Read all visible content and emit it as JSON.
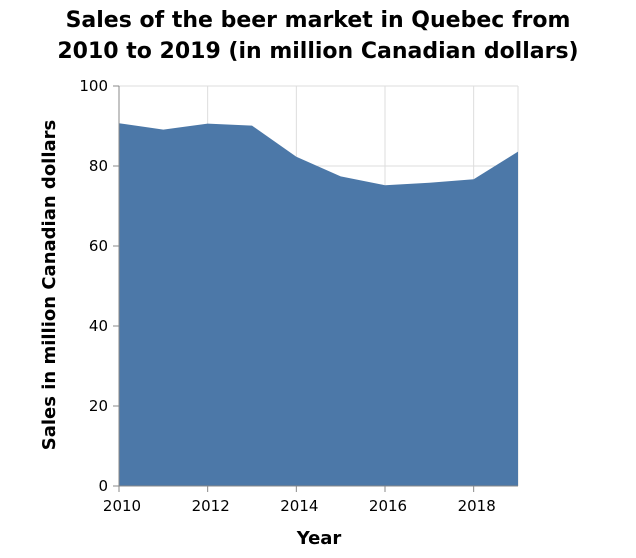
{
  "chart_data": {
    "type": "area",
    "title": [
      "Sales of the beer market in Quebec from",
      "2010 to 2019 (in million Canadian dollars)"
    ],
    "xlabel": "Year",
    "ylabel": "Sales in million Canadian dollars",
    "x": [
      2010,
      2011,
      2012,
      2013,
      2014,
      2015,
      2016,
      2017,
      2018,
      2019
    ],
    "series": [
      {
        "values": [
          90.7,
          89.1,
          90.6,
          90.1,
          82.3,
          77.4,
          75.2,
          75.8,
          76.7,
          83.6
        ]
      }
    ],
    "xlim": [
      2010,
      2019
    ],
    "ylim": [
      0,
      100
    ],
    "xticks": [
      2010,
      2012,
      2014,
      2016,
      2018
    ],
    "yticks": [
      0,
      20,
      40,
      60,
      80,
      100
    ],
    "grid": true,
    "colors": {
      "area": "#4c78a8",
      "grid": "#dddddd",
      "axis": "#888888"
    }
  }
}
